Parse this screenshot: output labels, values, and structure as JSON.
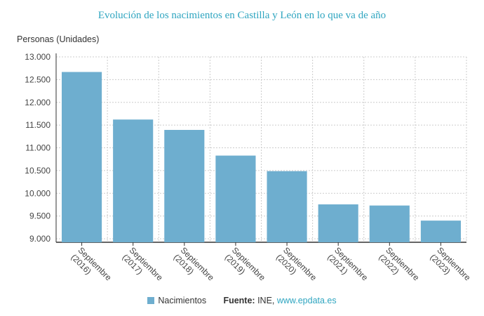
{
  "chart_data": {
    "type": "bar",
    "title": "Evolución de los nacimientos en Castilla y León en lo que va de año",
    "ylabel": "Personas (Unidades)",
    "xlabel": "",
    "categories": [
      "Septiembre (2016)",
      "Septiembre (2017)",
      "Septiembre (2018)",
      "Septiembre (2019)",
      "Septiembre (2020)",
      "Septiembre (2021)",
      "Septiembre (2022)",
      "Septiembre (2023)"
    ],
    "series": [
      {
        "name": "Nacimientos",
        "values": [
          12668,
          11622,
          11394,
          10829,
          10487,
          9756,
          9731,
          9399
        ],
        "color": "#6eaecf"
      }
    ],
    "ylim": [
      9000,
      13000
    ],
    "yticks": [
      "9.000",
      "9.500",
      "10.000",
      "10.500",
      "11.000",
      "11.500",
      "12.000",
      "12.500",
      "13.000"
    ],
    "grid": true,
    "legend": "bottom"
  },
  "source": {
    "label": "Fuente:",
    "text": "INE,",
    "link": "www.epdata.es"
  }
}
